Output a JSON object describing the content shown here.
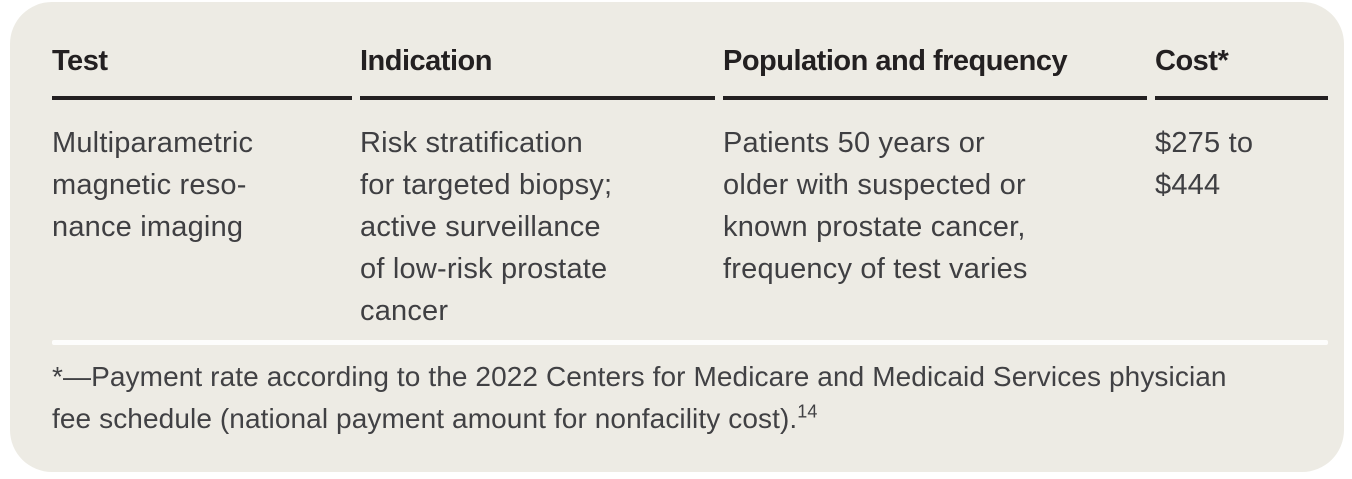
{
  "colors": {
    "page_background": "#FFFFFF",
    "card_background": "#EDEBE4",
    "header_text": "#232021",
    "header_rule": "#232021",
    "body_text": "#3F3F42",
    "footnote_separator": "#FDFDFC"
  },
  "table": {
    "headers": [
      {
        "label": "Test"
      },
      {
        "label": "Indication"
      },
      {
        "label": "Population and frequency"
      },
      {
        "label": "Cost*"
      }
    ],
    "row": {
      "test": "Multiparametric\nmagnetic reso-\nnance imaging",
      "indication": "Risk stratification\nfor targeted biopsy;\nactive surveillance\nof low-risk prostate\ncancer",
      "population_and_frequency": "Patients 50 years or\nolder with suspected or\nknown prostate cancer,\nfrequency of test varies",
      "cost": "$275 to\n$444"
    }
  },
  "footnote": {
    "text": "*—Payment rate according to the 2022 Centers for Medicare and Medicaid Services physician\nfee schedule (national payment amount for nonfacility cost).",
    "reference_superscript": "14"
  }
}
